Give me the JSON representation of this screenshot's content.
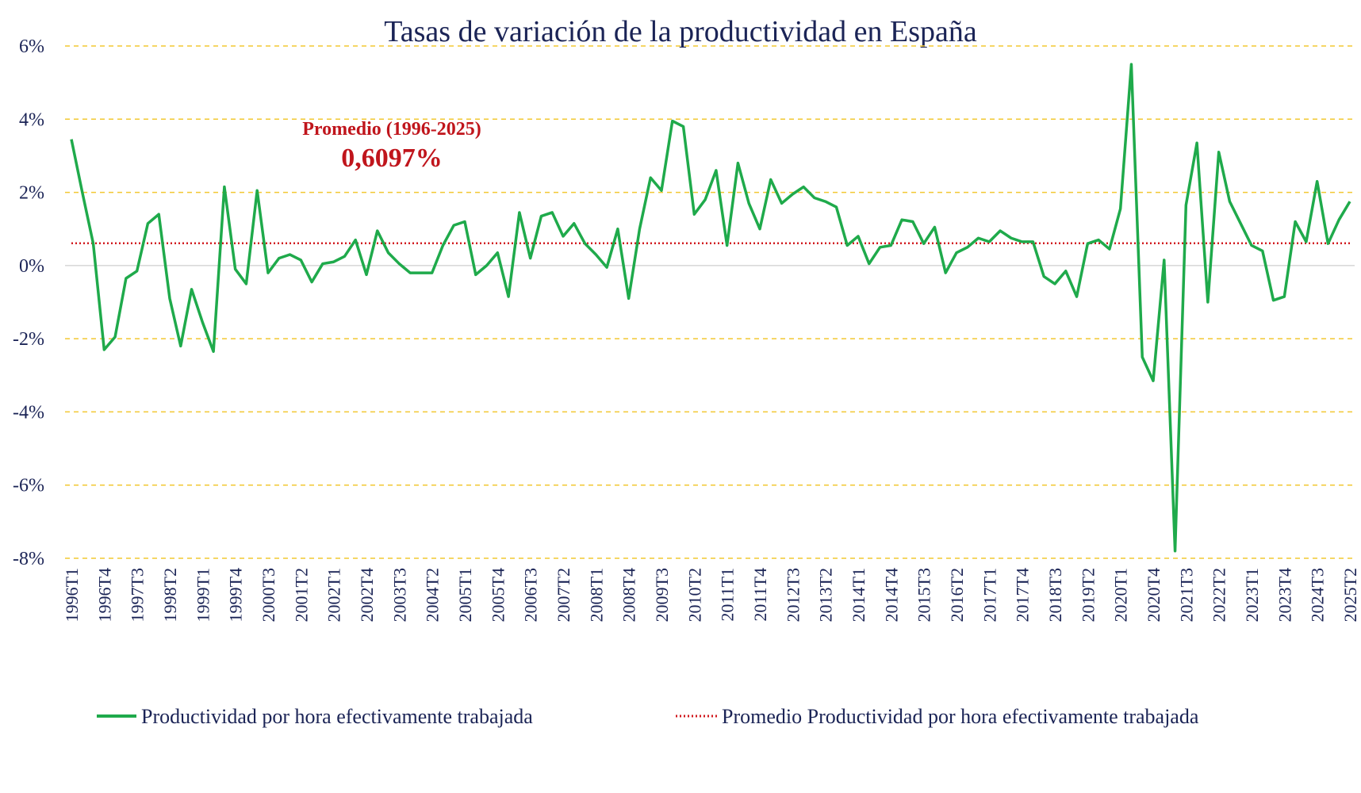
{
  "chart_data": {
    "type": "line",
    "title": "Tasas de variación de la productividad en España",
    "ylim": [
      -8,
      6
    ],
    "yticks": [
      6,
      4,
      2,
      0,
      -2,
      -4,
      -6,
      -8
    ],
    "ytick_labels": [
      "6%",
      "4%",
      "2%",
      "0%",
      "-2%",
      "-4%",
      "-6%",
      "-8%"
    ],
    "x_tick_labels": [
      "1996T1",
      "1996T4",
      "1997T3",
      "1998T2",
      "1999T1",
      "1999T4",
      "2000T3",
      "2001T2",
      "2002T1",
      "2002T4",
      "2003T3",
      "2004T2",
      "2005T1",
      "2005T4",
      "2006T3",
      "2007T2",
      "2008T1",
      "2008T4",
      "2009T3",
      "2010T2",
      "2011T1",
      "2011T4",
      "2012T3",
      "2013T2",
      "2014T1",
      "2014T4",
      "2015T3",
      "2016T2",
      "2017T1",
      "2017T4",
      "2018T3",
      "2019T2",
      "2020T1",
      "2020T4",
      "2021T3",
      "2022T2",
      "2023T1",
      "2023T4",
      "2024T3",
      "2025T2"
    ],
    "x_tick_step": 3,
    "grid": true,
    "legend_position": "bottom",
    "series": [
      {
        "name": "Productividad por hora efectivamente trabajada",
        "color": "#1faa4b",
        "style": "solid",
        "values": [
          3.45,
          2.0,
          0.6,
          -2.3,
          -1.95,
          -0.35,
          -0.15,
          1.15,
          1.4,
          -0.9,
          -2.2,
          -0.65,
          -1.55,
          -2.35,
          2.15,
          -0.1,
          -0.5,
          2.05,
          -0.2,
          0.2,
          0.3,
          0.15,
          -0.45,
          0.05,
          0.1,
          0.25,
          0.7,
          -0.25,
          0.95,
          0.35,
          0.05,
          -0.2,
          -0.2,
          -0.2,
          0.55,
          1.1,
          1.2,
          -0.25,
          0.0,
          0.35,
          -0.85,
          1.45,
          0.2,
          1.35,
          1.45,
          0.8,
          1.15,
          0.6,
          0.3,
          -0.05,
          1.0,
          -0.9,
          1.0,
          2.4,
          2.05,
          3.95,
          3.8,
          1.4,
          1.8,
          2.6,
          0.55,
          2.8,
          1.7,
          1.0,
          2.35,
          1.7,
          1.95,
          2.15,
          1.85,
          1.75,
          1.6,
          0.55,
          0.8,
          0.05,
          0.5,
          0.55,
          1.25,
          1.2,
          0.6,
          1.05,
          -0.2,
          0.35,
          0.5,
          0.75,
          0.65,
          0.95,
          0.75,
          0.65,
          0.65,
          -0.3,
          -0.5,
          -0.15,
          -0.85,
          0.6,
          0.7,
          0.45,
          1.55,
          5.5,
          -2.5,
          -3.15,
          0.15,
          -7.8,
          1.65,
          3.35,
          -1.0,
          3.1,
          1.75,
          1.15,
          0.55,
          0.4,
          -0.95,
          -0.85,
          1.2,
          0.65,
          2.3,
          0.6,
          1.25,
          1.75
        ]
      },
      {
        "name": "Promedio Productividad por hora efectivamente trabajada",
        "color": "#d11a1f",
        "style": "dotted",
        "constant": 0.6097
      }
    ],
    "annotations": {
      "average_label": "Promedio (1996-2025)",
      "average_value": "0,6097%"
    },
    "colors": {
      "text": "#1b2456",
      "grid": "#f2c832",
      "zero_line": "#d6d6d6",
      "annotation": "#c0151c"
    }
  }
}
